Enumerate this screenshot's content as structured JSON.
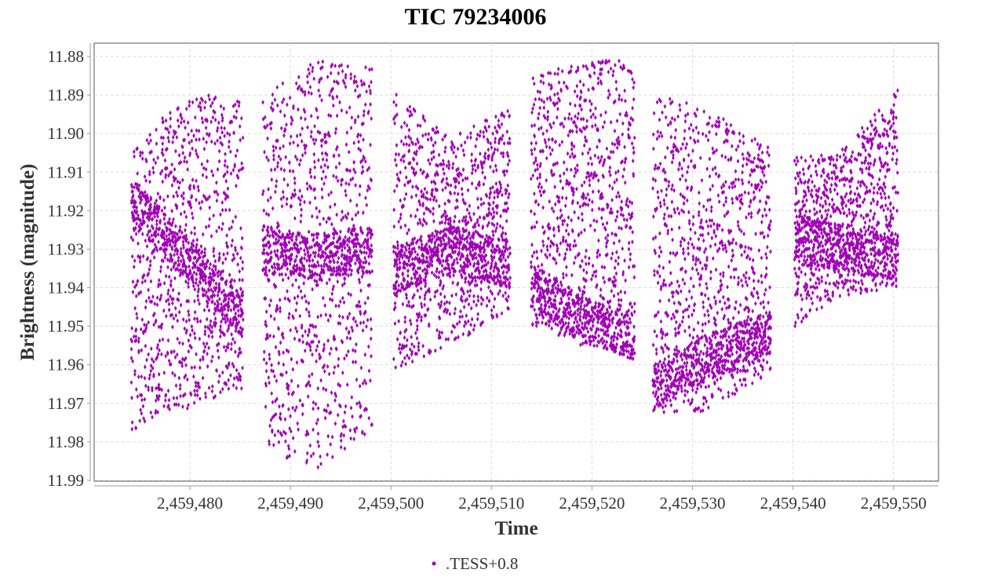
{
  "chart_data": {
    "type": "scatter",
    "title": "TIC 79234006",
    "xlabel": "Time",
    "ylabel": "Brightness (magnitude)",
    "xlim": [
      2459470.6,
      2459554.4
    ],
    "ylim": [
      11.99,
      11.877
    ],
    "y_inverted": true,
    "grid": true,
    "x_ticks": [
      2459480,
      2459490,
      2459500,
      2459510,
      2459520,
      2459530,
      2459540,
      2459550
    ],
    "x_tick_labels": [
      "2,459,480",
      "2,459,490",
      "2,459,500",
      "2,459,510",
      "2,459,520",
      "2,459,530",
      "2,459,540",
      "2,459,550"
    ],
    "y_ticks": [
      11.88,
      11.89,
      11.9,
      11.91,
      11.92,
      11.93,
      11.94,
      11.95,
      11.96,
      11.97,
      11.98,
      11.99
    ],
    "y_tick_labels": [
      "11.88",
      "11.89",
      "11.90",
      "11.91",
      "11.92",
      "11.93",
      "11.94",
      "11.95",
      "11.96",
      "11.97",
      "11.98",
      "11.99"
    ],
    "legend": {
      "placement": "bottom-center",
      "entries": [
        ".TESS+0.8"
      ]
    },
    "series": [
      {
        "name": ".TESS+0.8",
        "color": "#a000b4",
        "note": "dense point cloud per observing segment; envelope given as [time, upper_mag, lower_mag, trend_mag]",
        "segments": [
          {
            "t0": 2459474.2,
            "t1": 2459485.3,
            "envelope": [
              [
                2459474.2,
                11.905,
                11.977,
                11.917
              ],
              [
                2459478.0,
                11.894,
                11.974,
                11.928
              ],
              [
                2459481.0,
                11.89,
                11.97,
                11.936
              ],
              [
                2459485.3,
                11.89,
                11.966,
                11.948
              ]
            ]
          },
          {
            "t0": 2459487.3,
            "t1": 2459498.2,
            "envelope": [
              [
                2459487.3,
                11.89,
                11.982,
                11.93
              ],
              [
                2459492.5,
                11.881,
                11.987,
                11.932
              ],
              [
                2459498.2,
                11.883,
                11.977,
                11.93
              ]
            ]
          },
          {
            "t0": 2459500.3,
            "t1": 2459511.9,
            "envelope": [
              [
                2459500.3,
                11.889,
                11.962,
                11.936
              ],
              [
                2459506.0,
                11.901,
                11.955,
                11.93
              ],
              [
                2459511.9,
                11.893,
                11.946,
                11.934
              ]
            ]
          },
          {
            "t0": 2459514.0,
            "t1": 2459524.3,
            "envelope": [
              [
                2459514.0,
                11.884,
                11.95,
                11.94
              ],
              [
                2459519.0,
                11.882,
                11.955,
                11.948
              ],
              [
                2459524.3,
                11.88,
                11.958,
                11.953
              ]
            ]
          },
          {
            "t0": 2459526.1,
            "t1": 2459537.8,
            "envelope": [
              [
                2459526.1,
                11.89,
                11.975,
                11.966
              ],
              [
                2459531.5,
                11.893,
                11.972,
                11.958
              ],
              [
                2459537.8,
                11.904,
                11.962,
                11.952
              ]
            ]
          },
          {
            "t0": 2459540.2,
            "t1": 2459550.5,
            "envelope": [
              [
                2459540.2,
                11.906,
                11.95,
                11.927
              ],
              [
                2459545.0,
                11.904,
                11.942,
                11.93
              ],
              [
                2459550.5,
                11.888,
                11.94,
                11.932
              ]
            ]
          }
        ]
      }
    ]
  }
}
